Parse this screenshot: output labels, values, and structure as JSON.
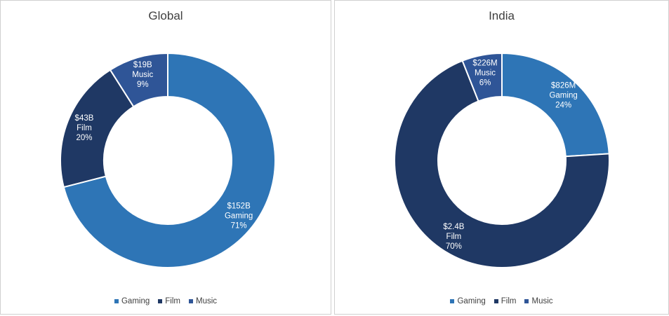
{
  "colors": {
    "Gaming": "#2e75b6",
    "Film": "#1f3864",
    "Music": "#2f5597"
  },
  "legend": [
    "Gaming",
    "Film",
    "Music"
  ],
  "chart_data": [
    {
      "type": "pie",
      "title": "Global",
      "categories": [
        "Gaming",
        "Film",
        "Music"
      ],
      "values": [
        71,
        20,
        9
      ],
      "amounts": [
        "$152B",
        "$43B",
        "$19B"
      ],
      "percent_labels": [
        "71%",
        "20%",
        "9%"
      ]
    },
    {
      "type": "pie",
      "title": "India",
      "categories": [
        "Gaming",
        "Film",
        "Music"
      ],
      "values": [
        24,
        70,
        6
      ],
      "amounts": [
        "$826M",
        "$2.4B",
        "$226M"
      ],
      "percent_labels": [
        "24%",
        "70%",
        "6%"
      ]
    }
  ]
}
